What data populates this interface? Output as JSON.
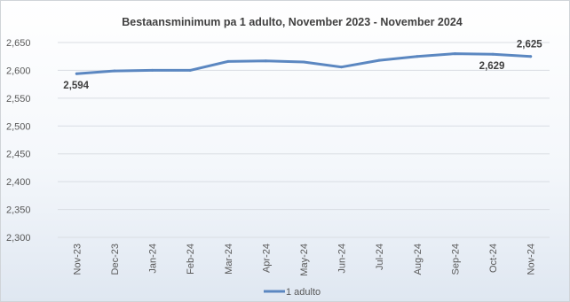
{
  "chart_data": {
    "type": "line",
    "title": "Bestaansminimum pa 1 adulto, November 2023 - November 2024",
    "categories": [
      "Nov-23",
      "Dec-23",
      "Jan-24",
      "Feb-24",
      "Mar-24",
      "Apr-24",
      "May-24",
      "Jun-24",
      "Jul-24",
      "Aug-24",
      "Sep-24",
      "Oct-24",
      "Nov-24"
    ],
    "series": [
      {
        "name": "1 adulto",
        "color": "#5b87c1",
        "values": [
          2594,
          2599,
          2600,
          2600,
          2616,
          2617,
          2615,
          2606,
          2618,
          2625,
          2630,
          2629,
          2625
        ]
      }
    ],
    "data_labels": [
      {
        "index": 0,
        "text": "2,594"
      },
      {
        "index": 11,
        "text": "2,629"
      },
      {
        "index": 12,
        "text": "2,625"
      }
    ],
    "y_ticks": [
      "2,300",
      "2,350",
      "2,400",
      "2,450",
      "2,500",
      "2,550",
      "2,600",
      "2,650"
    ],
    "ylim": [
      2300,
      2650
    ],
    "y_step": 50,
    "grid": true,
    "legend_position": "bottom",
    "xlabel": "",
    "ylabel": ""
  }
}
